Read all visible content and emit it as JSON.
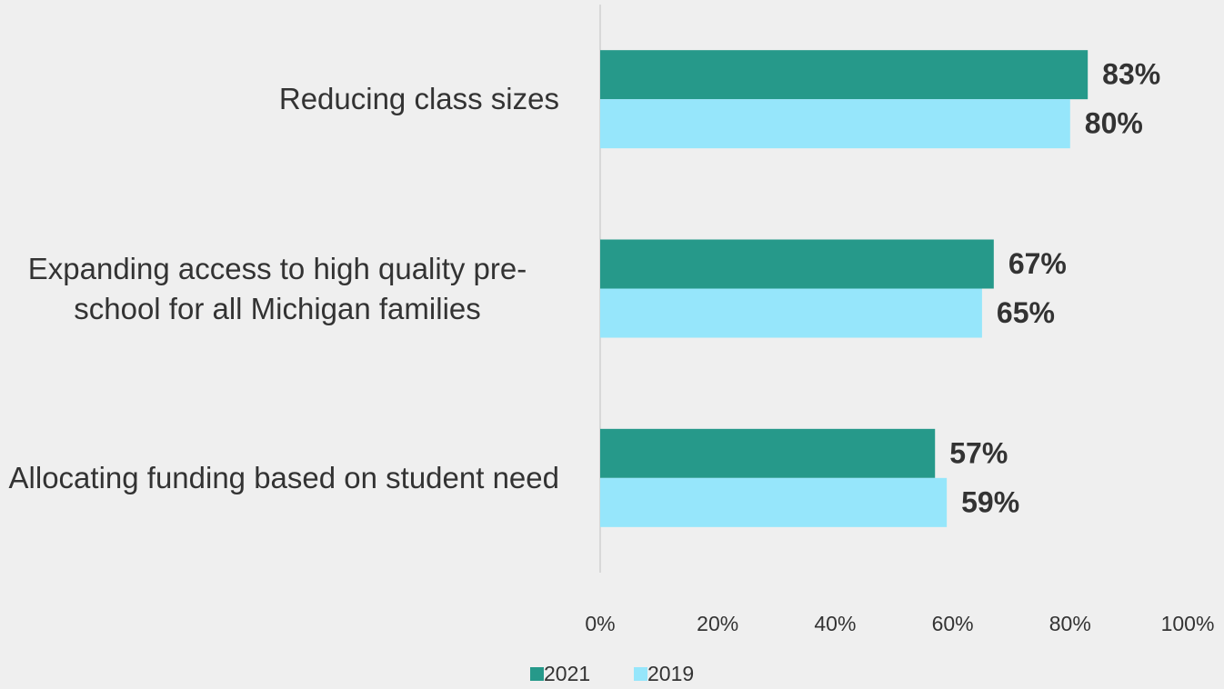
{
  "chart_data": {
    "type": "bar",
    "orientation": "horizontal",
    "categories": [
      "Reducing class sizes",
      "Expanding access to high quality pre-school for all Michigan families",
      "Allocating funding based on student need"
    ],
    "series": [
      {
        "name": "2021",
        "color": "#26998a",
        "values": [
          83,
          67,
          57
        ],
        "value_labels": [
          "83%",
          "67%",
          "57%"
        ]
      },
      {
        "name": "2019",
        "color": "#96e6fb",
        "values": [
          80,
          65,
          59
        ],
        "value_labels": [
          "80%",
          "65%",
          "59%"
        ]
      }
    ],
    "xlim": [
      0,
      100
    ],
    "xticks": [
      {
        "value": 0,
        "label": "0%"
      },
      {
        "value": 20,
        "label": "20%"
      },
      {
        "value": 40,
        "label": "40%"
      },
      {
        "value": 60,
        "label": "60%"
      },
      {
        "value": 80,
        "label": "80%"
      },
      {
        "value": 100,
        "label": "100%"
      }
    ],
    "legend": "bottom"
  }
}
